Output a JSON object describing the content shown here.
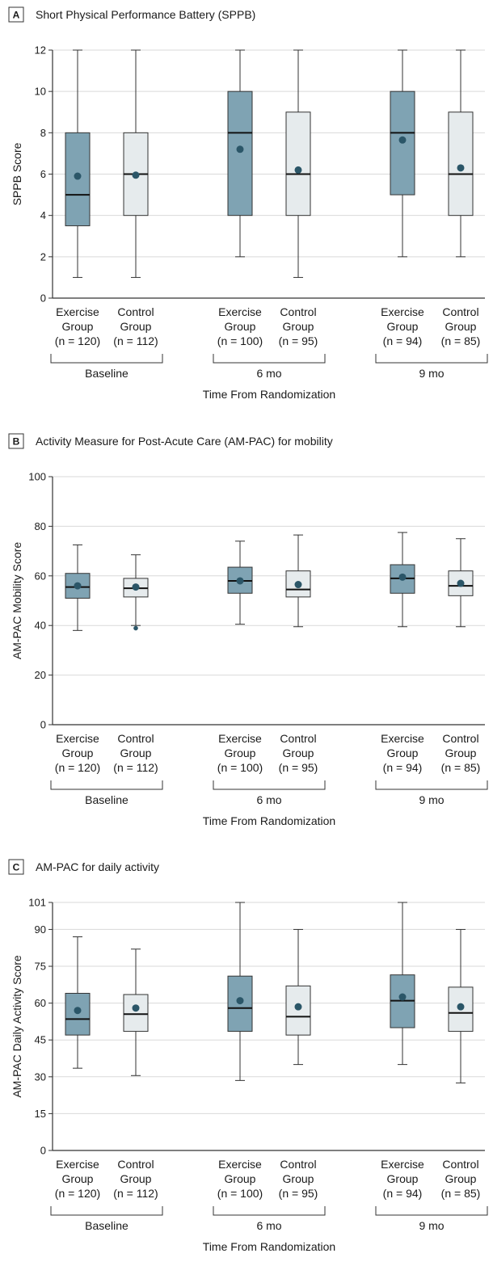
{
  "chart_data": [
    {
      "type": "box",
      "panel": "A",
      "title": "Short Physical Performance Battery (SPPB)",
      "ylabel": "SPPB Score",
      "xlabel": "Time From Randomization",
      "ylim": [
        0,
        12
      ],
      "yticks": [
        "0",
        "2",
        "4",
        "6",
        "8",
        "10",
        "12"
      ],
      "time_points": [
        "Baseline",
        "6 mo",
        "9 mo"
      ],
      "boxes": [
        {
          "group": "exercise",
          "label": [
            "Exercise",
            "Group",
            "(n = 120)"
          ],
          "min": 1,
          "q1": 3.5,
          "median": 5,
          "q3": 8,
          "max": 12,
          "mean": 5.9
        },
        {
          "group": "control",
          "label": [
            "Control",
            "Group",
            "(n = 112)"
          ],
          "min": 1,
          "q1": 4,
          "median": 6,
          "q3": 8,
          "max": 12,
          "mean": 5.95
        },
        {
          "group": "exercise",
          "label": [
            "Exercise",
            "Group",
            "(n = 100)"
          ],
          "min": 2,
          "q1": 4,
          "median": 8,
          "q3": 10,
          "max": 12,
          "mean": 7.2
        },
        {
          "group": "control",
          "label": [
            "Control",
            "Group",
            "(n = 95)"
          ],
          "min": 1,
          "q1": 4,
          "median": 6,
          "q3": 9,
          "max": 12,
          "mean": 6.2
        },
        {
          "group": "exercise",
          "label": [
            "Exercise",
            "Group",
            "(n = 94)"
          ],
          "min": 2,
          "q1": 5,
          "median": 8,
          "q3": 10,
          "max": 12,
          "mean": 7.65
        },
        {
          "group": "control",
          "label": [
            "Control",
            "Group",
            "(n = 85)"
          ],
          "min": 2,
          "q1": 4,
          "median": 6,
          "q3": 9,
          "max": 12,
          "mean": 6.3
        }
      ]
    },
    {
      "type": "box",
      "panel": "B",
      "title": "Activity Measure for Post-Acute Care (AM-PAC) for mobility",
      "ylabel": "AM-PAC Mobility Score",
      "xlabel": "Time From Randomization",
      "ylim": [
        0,
        100
      ],
      "yticks": [
        "0",
        "20",
        "40",
        "60",
        "80",
        "100"
      ],
      "time_points": [
        "Baseline",
        "6 mo",
        "9 mo"
      ],
      "boxes": [
        {
          "group": "exercise",
          "label": [
            "Exercise",
            "Group",
            "(n = 120)"
          ],
          "min": 38,
          "q1": 51,
          "median": 55.5,
          "q3": 61,
          "max": 72.5,
          "mean": 56
        },
        {
          "group": "control",
          "label": [
            "Control",
            "Group",
            "(n = 112)"
          ],
          "min": 40,
          "q1": 51.5,
          "median": 55,
          "q3": 59,
          "max": 68.5,
          "mean": 55.5,
          "outliers": [
            38.9
          ]
        },
        {
          "group": "exercise",
          "label": [
            "Exercise",
            "Group",
            "(n = 100)"
          ],
          "min": 40.5,
          "q1": 53,
          "median": 58,
          "q3": 63.5,
          "max": 74,
          "mean": 58
        },
        {
          "group": "control",
          "label": [
            "Control",
            "Group",
            "(n = 95)"
          ],
          "min": 39.5,
          "q1": 51.5,
          "median": 54.5,
          "q3": 62,
          "max": 76.5,
          "mean": 56.5
        },
        {
          "group": "exercise",
          "label": [
            "Exercise",
            "Group",
            "(n = 94)"
          ],
          "min": 39.5,
          "q1": 53,
          "median": 59,
          "q3": 64.5,
          "max": 77.5,
          "mean": 59.5
        },
        {
          "group": "control",
          "label": [
            "Control",
            "Group",
            "(n = 85)"
          ],
          "min": 39.5,
          "q1": 52,
          "median": 56,
          "q3": 62,
          "max": 75,
          "mean": 57
        }
      ]
    },
    {
      "type": "box",
      "panel": "C",
      "title": "AM-PAC for daily activity",
      "ylabel": "AM-PAC Daily Activity Score",
      "xlabel": "Time From Randomization",
      "ylim": [
        0,
        101
      ],
      "yticks": [
        "0",
        "15",
        "30",
        "45",
        "60",
        "75",
        "90",
        "101"
      ],
      "ytick_values": [
        0,
        15,
        30,
        45,
        60,
        75,
        90,
        101
      ],
      "time_points": [
        "Baseline",
        "6 mo",
        "9 mo"
      ],
      "boxes": [
        {
          "group": "exercise",
          "label": [
            "Exercise",
            "Group",
            "(n = 120)"
          ],
          "min": 33.5,
          "q1": 47,
          "median": 53.5,
          "q3": 64,
          "max": 87,
          "mean": 57
        },
        {
          "group": "control",
          "label": [
            "Control",
            "Group",
            "(n = 112)"
          ],
          "min": 30.5,
          "q1": 48.5,
          "median": 55.5,
          "q3": 63.5,
          "max": 82,
          "mean": 58
        },
        {
          "group": "exercise",
          "label": [
            "Exercise",
            "Group",
            "(n = 100)"
          ],
          "min": 28.5,
          "q1": 48.5,
          "median": 58,
          "q3": 71,
          "max": 101,
          "mean": 61
        },
        {
          "group": "control",
          "label": [
            "Control",
            "Group",
            "(n = 95)"
          ],
          "min": 35,
          "q1": 47,
          "median": 54.5,
          "q3": 67,
          "max": 90,
          "mean": 58.5
        },
        {
          "group": "exercise",
          "label": [
            "Exercise",
            "Group",
            "(n = 94)"
          ],
          "min": 35,
          "q1": 50,
          "median": 61,
          "q3": 71.5,
          "max": 101,
          "mean": 62.5
        },
        {
          "group": "control",
          "label": [
            "Control",
            "Group",
            "(n = 85)"
          ],
          "min": 27.5,
          "q1": 48.5,
          "median": 56,
          "q3": 66.5,
          "max": 90,
          "mean": 58.5
        }
      ]
    }
  ],
  "colors": {
    "exercise_fill": "#7fa3b3",
    "control_fill": "#e6ebed",
    "mean_dot": "#2b5668",
    "box_stroke": "#333333",
    "grid": "#d9d9d9",
    "axis": "#333333",
    "text": "#1a1a1a"
  }
}
